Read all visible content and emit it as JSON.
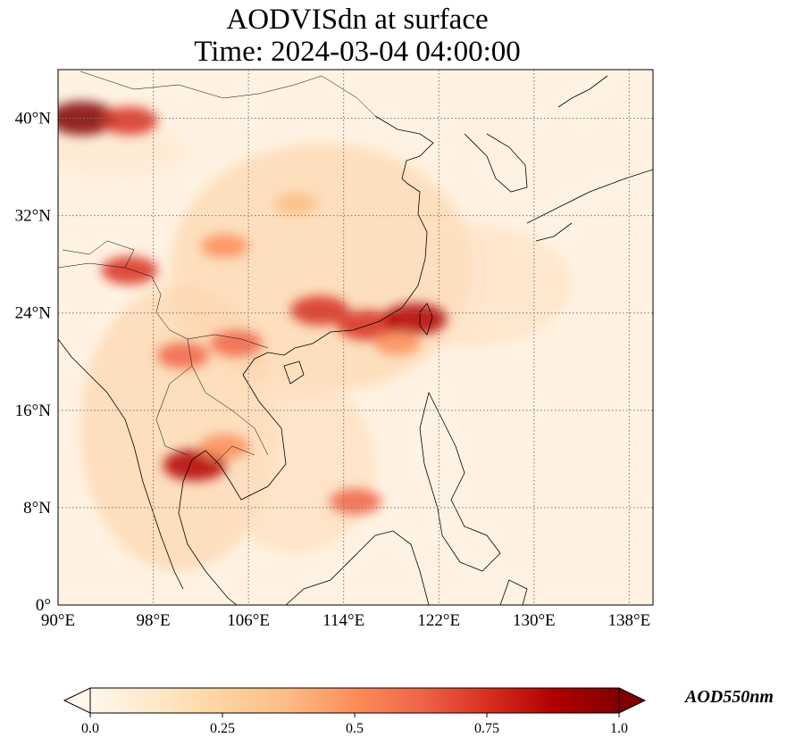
{
  "title": {
    "line1": "AODVISdn at surface",
    "line2": "Time: 2024-03-04 04:00:00"
  },
  "map": {
    "projection": "PlateCarree",
    "lon_range": [
      90,
      140
    ],
    "lat_range": [
      0,
      44
    ],
    "gridlines": true,
    "gridline_style": "dotted",
    "coastlines": true,
    "borders": true,
    "colormap": "OrRd",
    "x_ticks": [
      {
        "value": 90,
        "label": "90°E"
      },
      {
        "value": 98,
        "label": "98°E"
      },
      {
        "value": 106,
        "label": "106°E"
      },
      {
        "value": 114,
        "label": "114°E"
      },
      {
        "value": 122,
        "label": "122°E"
      },
      {
        "value": 130,
        "label": "130°E"
      },
      {
        "value": 138,
        "label": "138°E"
      }
    ],
    "y_ticks": [
      {
        "value": 0,
        "label": "0°"
      },
      {
        "value": 8,
        "label": "8°N"
      },
      {
        "value": 16,
        "label": "16°N"
      },
      {
        "value": 24,
        "label": "24°N"
      },
      {
        "value": 32,
        "label": "32°N"
      },
      {
        "value": 40,
        "label": "40°N"
      }
    ],
    "hotspots": [
      {
        "lon": 92,
        "lat": 40.0,
        "value": 0.95
      },
      {
        "lon": 96,
        "lat": 39.8,
        "value": 0.7
      },
      {
        "lon": 96,
        "lat": 27.5,
        "value": 0.7
      },
      {
        "lon": 112,
        "lat": 24.2,
        "value": 0.75
      },
      {
        "lon": 116,
        "lat": 23.0,
        "value": 0.8
      },
      {
        "lon": 120,
        "lat": 23.5,
        "value": 0.85
      },
      {
        "lon": 105,
        "lat": 21.5,
        "value": 0.6
      },
      {
        "lon": 100.5,
        "lat": 20.5,
        "value": 0.6
      },
      {
        "lon": 101.5,
        "lat": 11.5,
        "value": 0.85
      },
      {
        "lon": 104,
        "lat": 13.0,
        "value": 0.55
      },
      {
        "lon": 110,
        "lat": 33.0,
        "value": 0.4
      },
      {
        "lon": 104,
        "lat": 29.5,
        "value": 0.5
      },
      {
        "lon": 115,
        "lat": 8.5,
        "value": 0.6
      },
      {
        "lon": 118.5,
        "lat": 21.5,
        "value": 0.45
      }
    ]
  },
  "colorbar": {
    "label": "AOD550nm",
    "min": 0.0,
    "max": 1.0,
    "extend": "both",
    "ticks": [
      {
        "value": 0.0,
        "label": "0.0"
      },
      {
        "value": 0.25,
        "label": "0.25"
      },
      {
        "value": 0.5,
        "label": "0.5"
      },
      {
        "value": 0.75,
        "label": "0.75"
      },
      {
        "value": 1.0,
        "label": "1.0"
      }
    ],
    "colors": [
      "#fff7ec",
      "#fee8c8",
      "#fdd49e",
      "#fdbb84",
      "#fc8d59",
      "#ef6548",
      "#d7301f",
      "#b30000",
      "#7f0000"
    ]
  }
}
